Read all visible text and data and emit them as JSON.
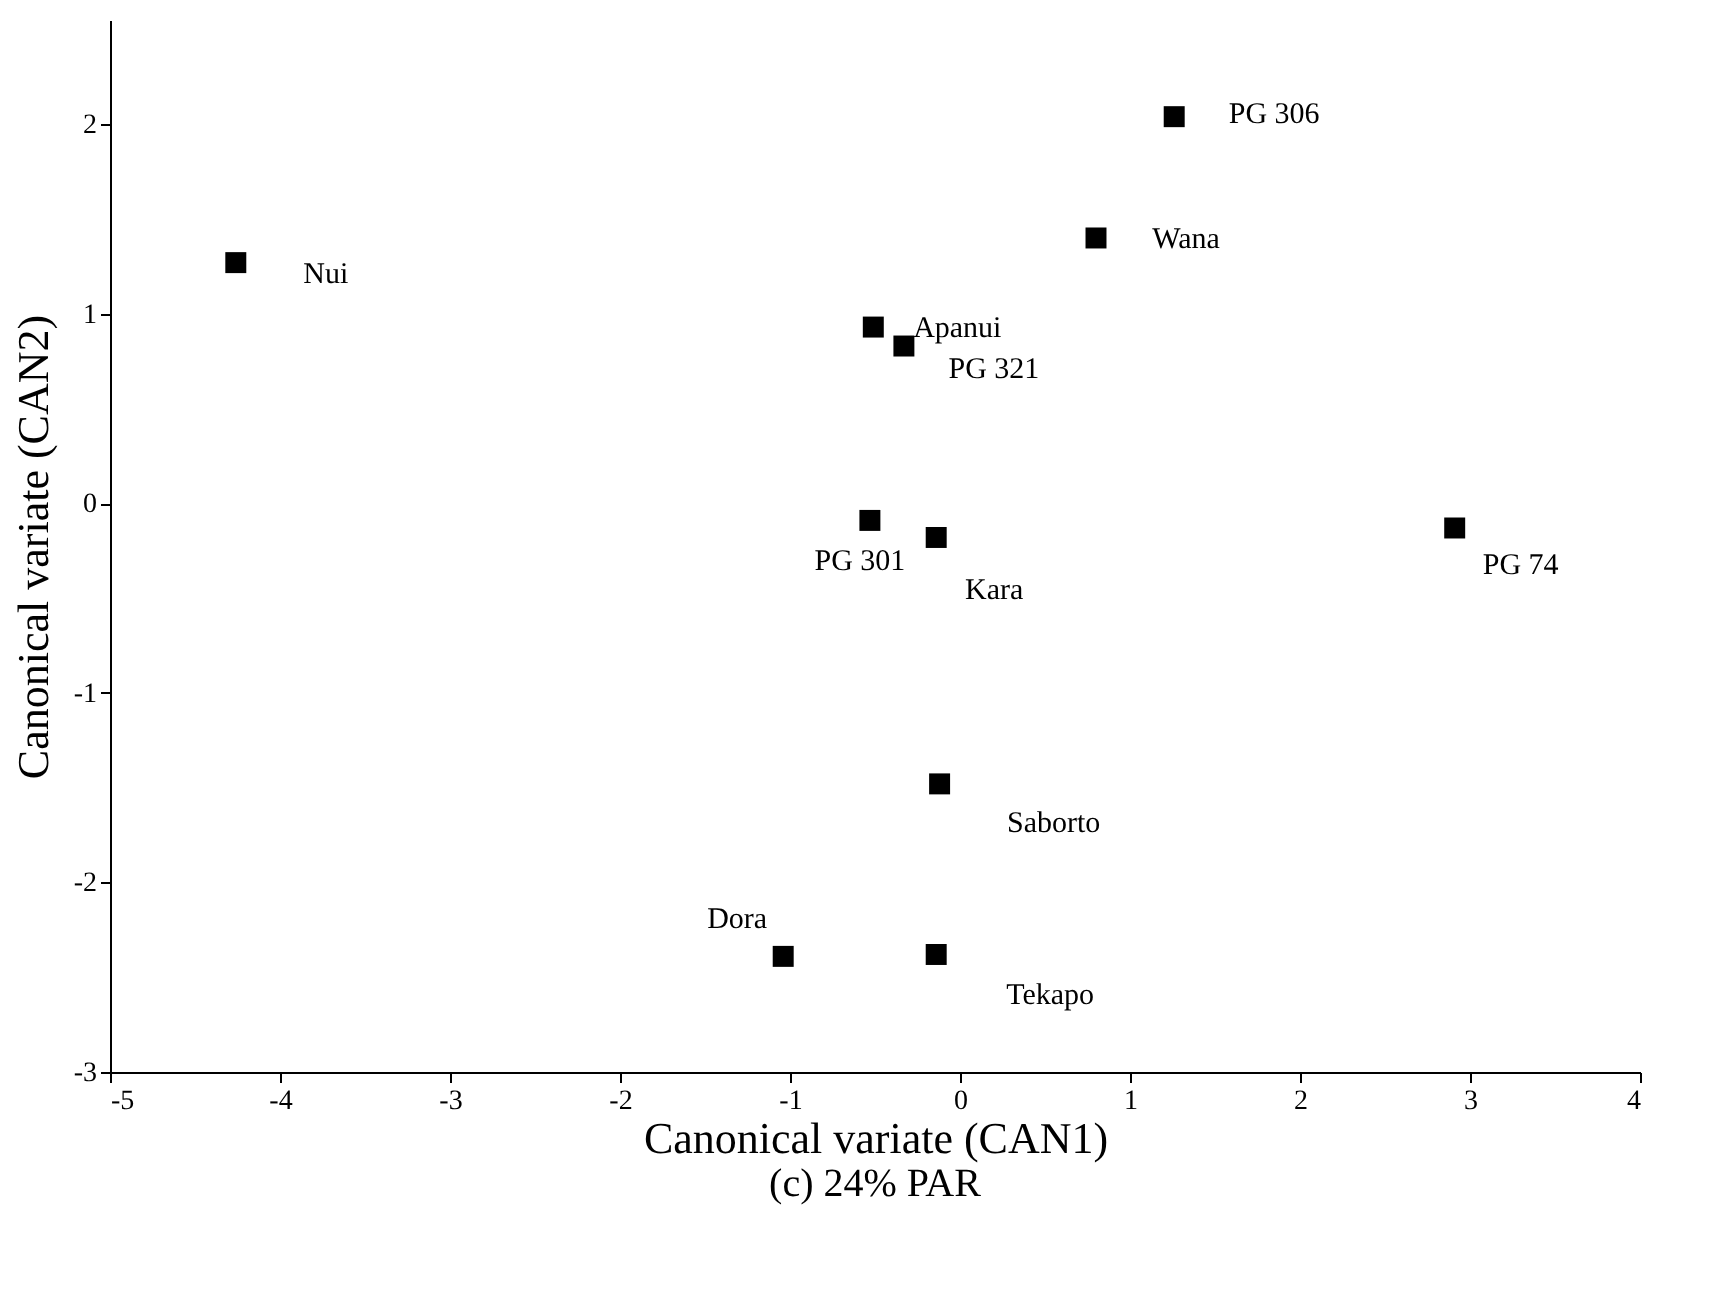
{
  "chart_data": {
    "type": "scatter",
    "title": "(c) 24% PAR",
    "xlabel": "Canonical variate (CAN1)",
    "ylabel": "Canonical variate (CAN2)",
    "x": [
      -4.26,
      1.26,
      0.8,
      -0.51,
      -0.33,
      -0.53,
      -0.14,
      2.91,
      -0.12,
      -0.14,
      -1.04
    ],
    "series": [
      {
        "color": "#000000",
        "values": [
          1.27,
          2.04,
          1.4,
          0.93,
          0.83,
          -0.09,
          -0.18,
          -0.13,
          -1.48,
          -2.38,
          -2.39
        ]
      }
    ],
    "marker": "square",
    "grid": false,
    "xlim": [
      -5,
      4
    ],
    "ylim": [
      -3,
      2.55
    ],
    "xticks": [
      -5,
      -4,
      -3,
      -2,
      -1,
      0,
      1,
      2,
      3,
      4
    ],
    "yticks": [
      -3,
      -2,
      -1,
      0,
      1,
      2
    ],
    "annotations": [
      {
        "text": "Nui",
        "x": -4.26,
        "y": 1.27
      },
      {
        "text": "PG 306",
        "x": 1.26,
        "y": 2.04
      },
      {
        "text": "Wana",
        "x": 0.8,
        "y": 1.4
      },
      {
        "text": "Apanui",
        "x": -0.51,
        "y": 0.93
      },
      {
        "text": "PG 321",
        "x": -0.33,
        "y": 0.83
      },
      {
        "text": "PG 301",
        "x": -0.53,
        "y": -0.09
      },
      {
        "text": "Kara",
        "x": -0.14,
        "y": -0.18
      },
      {
        "text": "PG 74",
        "x": 2.91,
        "y": -0.13
      },
      {
        "text": "Saborto",
        "x": -0.12,
        "y": -1.48
      },
      {
        "text": "Tekapo",
        "x": -0.14,
        "y": -2.38
      },
      {
        "text": "Dora",
        "x": -1.04,
        "y": -2.39
      }
    ]
  }
}
